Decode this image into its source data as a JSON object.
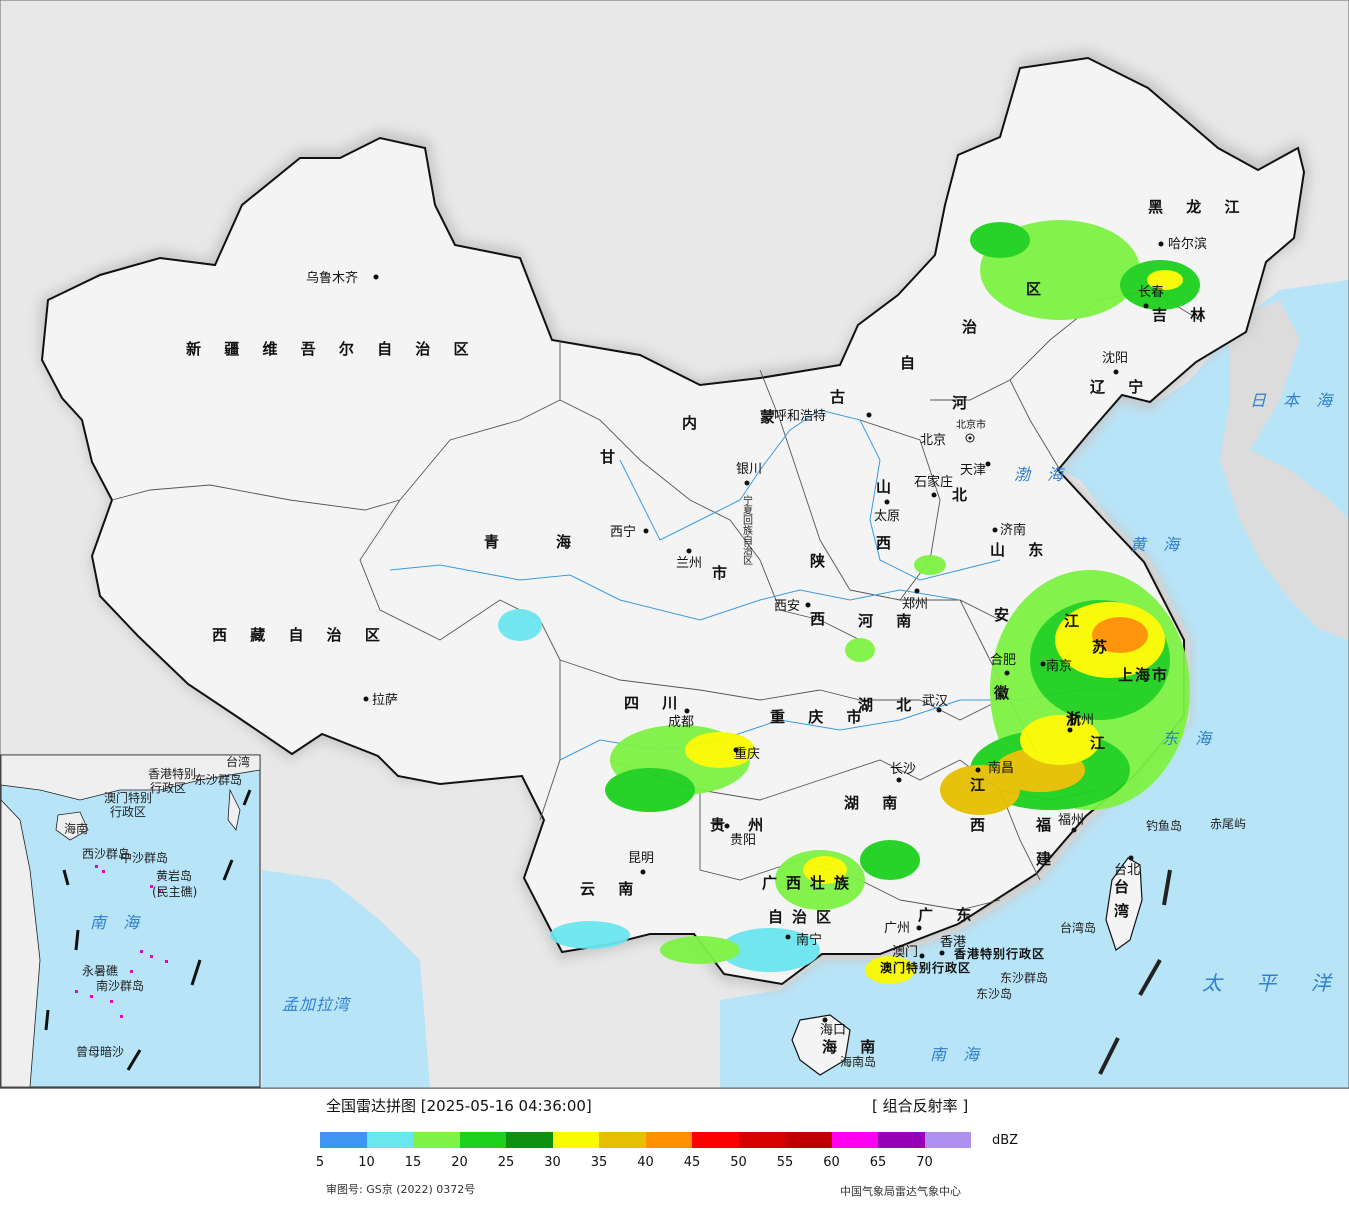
{
  "legend": {
    "title": "全国雷达拼图 [2025-05-16 04:36:00]",
    "product": "[ 组合反射率 ]",
    "unit": "dBZ",
    "approval": "审图号: GS京 (2022) 0372号",
    "credit": "中国气象局雷达气象中心",
    "scale_colors": [
      "#3f96f2",
      "#6ae6ee",
      "#7ef245",
      "#1ed11e",
      "#109010",
      "#fafa00",
      "#e6c000",
      "#ff9000",
      "#ff0000",
      "#d60000",
      "#c00000",
      "#ff00f0",
      "#9600b4",
      "#ad90f0"
    ],
    "tick_labels": [
      "5",
      "10",
      "15",
      "20",
      "25",
      "30",
      "35",
      "40",
      "45",
      "50",
      "55",
      "60",
      "65",
      "70"
    ]
  },
  "map": {
    "provinces": {
      "xinjiang": "新 疆 维 吾 尔 自 治 区",
      "tibet": "西 藏 自 治 区",
      "qinghai1": "青",
      "qinghai2": "海",
      "gansu": "甘",
      "ningxia": "宁夏回族自治区",
      "neimenggu1": "内",
      "neimenggu2": "蒙",
      "neimenggu3": "古",
      "neimenggu4": "自",
      "neimenggu5": "治",
      "neimenggu6": "区",
      "heilongjiang": "黑 龙 江",
      "jilin": "吉 林",
      "liaoning": "辽 宁",
      "hebei1": "河",
      "hebei2": "北",
      "shanxi1": "山",
      "shanxi2": "西",
      "shaanxi1": "陕",
      "shaanxi2": "西",
      "shandong": "山 东",
      "henan": "河 南",
      "anhui1": "安",
      "anhui2": "徽",
      "jiangsu1": "江",
      "jiangsu2": "苏",
      "sichuan": "四 川",
      "chongqing": "重 庆 市",
      "hubei": "湖 北",
      "hunan": "湖 南",
      "jiangxi1": "江",
      "jiangxi2": "西",
      "zhejiang1": "浙",
      "zhejiang2": "江",
      "fujian1": "福",
      "fujian2": "建",
      "guizhou": "贵 州",
      "yunnan": "云 南",
      "guangxi1": "广西壮族",
      "guangxi2": "自治区",
      "guangdong": "广 东",
      "hainan": "海 南",
      "taiwan1": "台",
      "taiwan2": "湾",
      "shanghai": "上海市",
      "gansu_shi": "市",
      "hk": "香港特别行政区",
      "macau": "澳门特别行政区"
    },
    "cities": {
      "urumqi": "乌鲁木齐",
      "lhasa": "拉萨",
      "xining": "西宁",
      "lanzhou": "兰州",
      "yinchuan": "银川",
      "hohhot": "呼和浩特",
      "beijing": "北京",
      "beijing_shi": "北京市",
      "tianjin": "天津",
      "shijiazhuang": "石家庄",
      "taiyuan": "太原",
      "jinan": "济南",
      "zhengzhou": "郑州",
      "xian": "西安",
      "hefei": "合肥",
      "nanjing": "南京",
      "hangzhou": "杭州",
      "wuhan": "武汉",
      "changsha": "长沙",
      "nanchang": "南昌",
      "fuzhou": "福州",
      "chengdu": "成都",
      "chongqing": "重庆",
      "guiyang": "贵阳",
      "kunming": "昆明",
      "nanning": "南宁",
      "guangzhou": "广州",
      "aomen": "澳门",
      "xianggang": "香港",
      "haikou": "海口",
      "taibei": "台北",
      "shenyang": "沈阳",
      "changchun": "长春",
      "haerbin": "哈尔滨"
    },
    "seas": {
      "japan": "日 本 海",
      "bohai": "渤 海",
      "yellow": "黄 海",
      "east": "东 海",
      "south": "南 海",
      "pacific": "太 平 洋",
      "bengal": "孟加拉湾"
    },
    "islands": {
      "diaoyu": "钓鱼岛",
      "chiwei": "赤尾屿",
      "taiwan_is": "台湾岛",
      "dongsha_qd": "东沙群岛",
      "dongsha": "东沙岛",
      "hainan_is": "海南岛"
    },
    "inset": {
      "hainan": "海南",
      "xisha": "西沙群岛",
      "zhongsha": "中沙群岛",
      "huangyan": "黄岩岛",
      "minzhu": "(民主礁)",
      "nansha": "南沙群岛",
      "south_sea": "南 海",
      "zengmu": "曾母暗沙",
      "yongshu": "永暑礁",
      "taiwan": "台湾",
      "dongsha_qd": "东沙群岛",
      "hk": "香港特别",
      "hk2": "行政区",
      "mc": "澳门特别",
      "mc2": "行政区"
    }
  }
}
